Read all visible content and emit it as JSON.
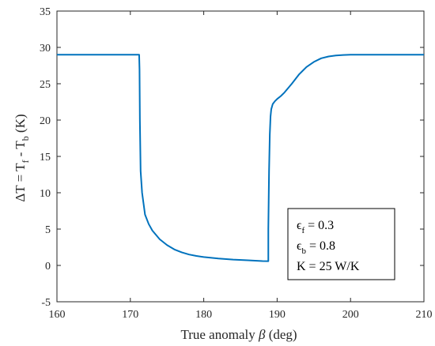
{
  "chart_data": {
    "type": "line",
    "xlabel_parts": {
      "text": "True anomaly ",
      "symbol": "β",
      "unit": " (deg)"
    },
    "ylabel_parts": {
      "main": "ΔT = T",
      "sub1": "f",
      "mid": " - T",
      "sub2": "b",
      "unit": " (K)"
    },
    "xlim": [
      160,
      210
    ],
    "ylim": [
      -5,
      35
    ],
    "xticks": [
      160,
      170,
      180,
      190,
      200,
      210
    ],
    "yticks": [
      -5,
      0,
      5,
      10,
      15,
      20,
      25,
      30,
      35
    ],
    "grid": false,
    "series": [
      {
        "color": "#0072BD",
        "x": [
          160,
          171.2,
          171.25,
          171.3,
          171.4,
          171.6,
          171.8,
          172.0,
          172.5,
          173,
          174,
          175,
          176,
          177,
          178,
          179,
          180,
          182,
          184,
          186,
          188,
          188.8,
          188.8,
          188.9,
          189.0,
          189.1,
          189.2,
          189.4,
          189.7,
          190.0,
          190.5,
          191,
          192,
          193,
          194,
          195,
          196,
          197,
          198,
          199,
          200,
          201,
          202,
          203,
          205,
          210
        ],
        "y": [
          29,
          29,
          27,
          20,
          13,
          10,
          8.5,
          7.0,
          5.7,
          4.8,
          3.6,
          2.8,
          2.2,
          1.8,
          1.5,
          1.3,
          1.15,
          0.95,
          0.8,
          0.7,
          0.6,
          0.58,
          5,
          13,
          18,
          20.5,
          21.5,
          22.2,
          22.6,
          22.9,
          23.3,
          23.8,
          25.0,
          26.3,
          27.3,
          28.0,
          28.5,
          28.75,
          28.88,
          28.95,
          29,
          29,
          29,
          29,
          29,
          29
        ]
      }
    ],
    "annotation": {
      "lines": [
        {
          "sym": "ϵ",
          "sub": "f",
          "rest": " = 0.3"
        },
        {
          "sym": "ϵ",
          "sub": "b",
          "rest": " = 0.8"
        },
        {
          "sym": "",
          "sub": "",
          "rest": "K = 25 W/K"
        }
      ]
    }
  }
}
